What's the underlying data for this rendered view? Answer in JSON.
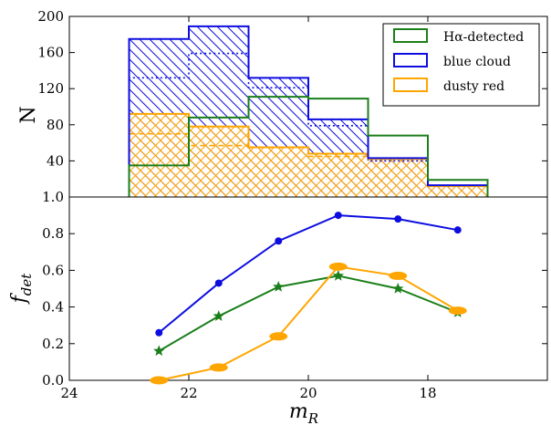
{
  "chart_data": [
    {
      "type": "histogram",
      "ylabel": "N",
      "xlim": [
        24,
        16
      ],
      "ylim": [
        1.0,
        200
      ],
      "yticks": [
        "1.0",
        "40",
        "80",
        "120",
        "160",
        "200"
      ],
      "bin_edges": [
        23,
        22,
        21,
        20,
        19,
        18,
        17
      ],
      "series": [
        {
          "name": "Hα-detected",
          "color": "#1a7f1a",
          "values": [
            35,
            88,
            111,
            109,
            68,
            19
          ]
        },
        {
          "name": "blue cloud",
          "color": "#0d0de0",
          "values": [
            175,
            189,
            132,
            86,
            43,
            13
          ]
        },
        {
          "name": "dusty red",
          "color": "#ffa500",
          "values": [
            92,
            78,
            55,
            48,
            42,
            12
          ]
        }
      ],
      "dotted_blue": [
        132,
        159,
        121,
        79,
        40,
        12
      ],
      "dashed_orange": [
        70,
        57,
        55,
        45,
        42,
        12
      ],
      "legend": "top-right"
    },
    {
      "type": "line",
      "xlabel": "m_R",
      "ylabel": "f_det",
      "xlim": [
        24,
        16
      ],
      "ylim": [
        0.0,
        1.0
      ],
      "xticks": [
        "24",
        "22",
        "20",
        "18"
      ],
      "yticks": [
        "0.0",
        "0.2",
        "0.4",
        "0.6",
        "0.8"
      ],
      "x": [
        22.5,
        21.5,
        20.5,
        19.5,
        18.5,
        17.5
      ],
      "series": [
        {
          "color": "#0d0de0",
          "marker": "circle",
          "values": [
            0.26,
            0.53,
            0.76,
            0.9,
            0.88,
            0.82
          ]
        },
        {
          "color": "#1a7f1a",
          "marker": "star",
          "values": [
            0.16,
            0.35,
            0.51,
            0.57,
            0.5,
            0.37
          ]
        },
        {
          "color": "#ffa500",
          "marker": "ellipse",
          "values": [
            0.0,
            0.07,
            0.24,
            0.62,
            0.57,
            0.38
          ]
        }
      ]
    }
  ]
}
